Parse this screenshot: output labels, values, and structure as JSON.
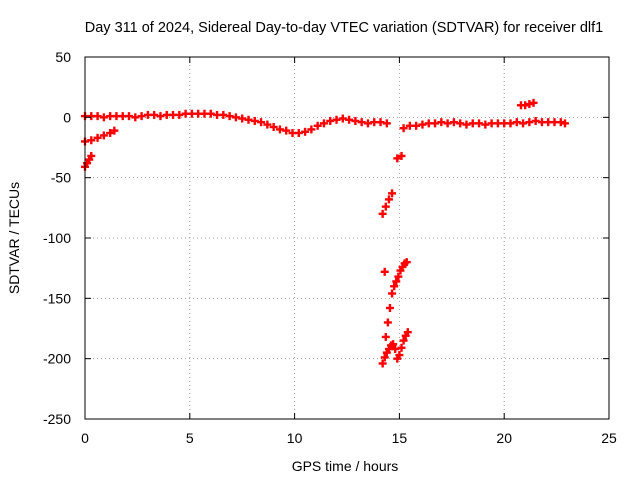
{
  "chart_data": {
    "type": "scatter",
    "title": "Day 311 of 2024, Sidereal Day-to-day VTEC variation (SDTVAR) for receiver dlf1",
    "xlabel": "GPS time / hours",
    "ylabel": "SDTVAR / TECUs",
    "xlim": [
      0,
      25
    ],
    "ylim": [
      -250,
      50
    ],
    "xticks": [
      0,
      5,
      10,
      15,
      20,
      25
    ],
    "yticks": [
      -250,
      -200,
      -150,
      -100,
      -50,
      0,
      50
    ],
    "grid": true,
    "legend": "none",
    "marker": "plus",
    "series": [
      {
        "color": "#ff0000",
        "points": [
          [
            0.0,
            1
          ],
          [
            0.3,
            1
          ],
          [
            0.6,
            1
          ],
          [
            0.9,
            0
          ],
          [
            1.2,
            1
          ],
          [
            1.5,
            1
          ],
          [
            1.8,
            1
          ],
          [
            2.1,
            1
          ],
          [
            2.4,
            0
          ],
          [
            2.7,
            1
          ],
          [
            3.0,
            2
          ],
          [
            3.3,
            2
          ],
          [
            3.6,
            1
          ],
          [
            3.9,
            2
          ],
          [
            4.2,
            2
          ],
          [
            4.5,
            2
          ],
          [
            4.8,
            3
          ],
          [
            5.1,
            3
          ],
          [
            5.4,
            3
          ],
          [
            5.7,
            3
          ],
          [
            6.0,
            3
          ],
          [
            6.3,
            2
          ],
          [
            6.6,
            2
          ],
          [
            6.9,
            1
          ],
          [
            7.2,
            0
          ],
          [
            7.5,
            -1
          ],
          [
            7.8,
            -2
          ],
          [
            8.1,
            -3
          ],
          [
            8.4,
            -4
          ],
          [
            8.7,
            -6
          ],
          [
            9.0,
            -8
          ],
          [
            9.3,
            -10
          ],
          [
            9.6,
            -11
          ],
          [
            9.9,
            -13
          ],
          [
            10.2,
            -13
          ],
          [
            10.5,
            -12
          ],
          [
            10.8,
            -10
          ],
          [
            11.1,
            -7
          ],
          [
            11.4,
            -5
          ],
          [
            11.7,
            -3
          ],
          [
            12.0,
            -2
          ],
          [
            12.3,
            -1
          ],
          [
            12.6,
            -2
          ],
          [
            12.9,
            -3
          ],
          [
            13.2,
            -4
          ],
          [
            13.5,
            -5
          ],
          [
            13.8,
            -4
          ],
          [
            14.1,
            -4
          ],
          [
            14.4,
            -5
          ],
          [
            0.0,
            -20
          ],
          [
            0.3,
            -19
          ],
          [
            0.6,
            -17
          ],
          [
            0.9,
            -15
          ],
          [
            1.2,
            -13
          ],
          [
            1.4,
            -11
          ],
          [
            0.0,
            -41
          ],
          [
            0.1,
            -38
          ],
          [
            0.2,
            -35
          ],
          [
            0.3,
            -32
          ],
          [
            15.2,
            -9
          ],
          [
            15.5,
            -7
          ],
          [
            15.8,
            -7
          ],
          [
            16.1,
            -6
          ],
          [
            16.4,
            -5
          ],
          [
            16.7,
            -5
          ],
          [
            17.0,
            -4
          ],
          [
            17.3,
            -5
          ],
          [
            17.6,
            -4
          ],
          [
            17.9,
            -5
          ],
          [
            18.2,
            -6
          ],
          [
            18.5,
            -5
          ],
          [
            18.8,
            -5
          ],
          [
            19.1,
            -6
          ],
          [
            19.4,
            -5
          ],
          [
            19.7,
            -5
          ],
          [
            20.0,
            -5
          ],
          [
            20.3,
            -5
          ],
          [
            20.6,
            -4
          ],
          [
            20.9,
            -5
          ],
          [
            21.2,
            -4
          ],
          [
            21.5,
            -3
          ],
          [
            21.8,
            -4
          ],
          [
            22.1,
            -4
          ],
          [
            22.4,
            -4
          ],
          [
            22.7,
            -4
          ],
          [
            22.9,
            -5
          ],
          [
            20.8,
            10
          ],
          [
            21.0,
            10
          ],
          [
            21.2,
            11
          ],
          [
            21.4,
            12
          ],
          [
            14.9,
            -34
          ],
          [
            15.1,
            -32
          ],
          [
            14.2,
            -80
          ],
          [
            14.35,
            -74
          ],
          [
            14.5,
            -68
          ],
          [
            14.65,
            -63
          ],
          [
            14.3,
            -128
          ],
          [
            14.35,
            -182
          ],
          [
            14.45,
            -170
          ],
          [
            14.55,
            -158
          ],
          [
            14.65,
            -146
          ],
          [
            14.75,
            -140
          ],
          [
            14.85,
            -136
          ],
          [
            14.95,
            -132
          ],
          [
            15.05,
            -127
          ],
          [
            15.15,
            -124
          ],
          [
            15.25,
            -121
          ],
          [
            15.35,
            -120
          ],
          [
            14.2,
            -204
          ],
          [
            14.3,
            -199
          ],
          [
            14.4,
            -195
          ],
          [
            14.5,
            -192
          ],
          [
            14.6,
            -189
          ],
          [
            14.7,
            -188
          ],
          [
            14.8,
            -192
          ],
          [
            14.9,
            -200
          ],
          [
            15.0,
            -197
          ],
          [
            15.1,
            -191
          ],
          [
            15.2,
            -185
          ],
          [
            15.3,
            -181
          ],
          [
            15.4,
            -178
          ]
        ]
      }
    ]
  }
}
